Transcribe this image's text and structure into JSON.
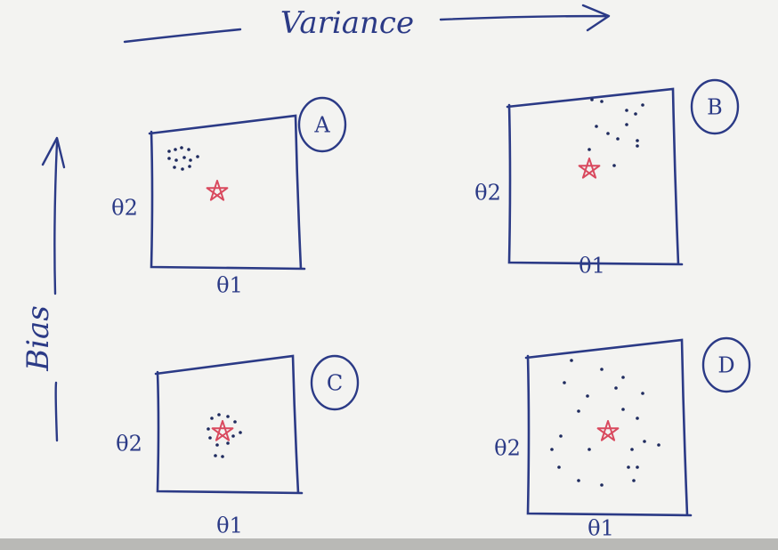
{
  "axis_top": "Variance",
  "axis_left": "Bias",
  "panels": [
    {
      "label": "A",
      "x_label": "θ1",
      "y_label": "θ2"
    },
    {
      "label": "B",
      "x_label": "θ1",
      "y_label": "θ2"
    },
    {
      "label": "C",
      "x_label": "θ1",
      "y_label": "θ2"
    },
    {
      "label": "D",
      "x_label": "θ1",
      "y_label": "θ2"
    }
  ]
}
